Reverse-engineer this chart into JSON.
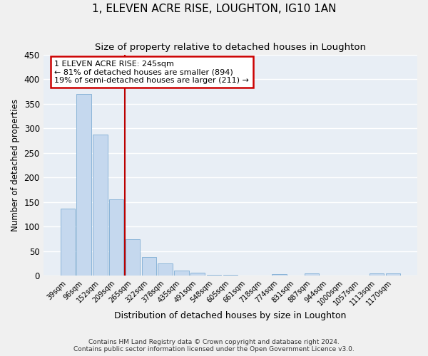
{
  "title": "1, ELEVEN ACRE RISE, LOUGHTON, IG10 1AN",
  "subtitle": "Size of property relative to detached houses in Loughton",
  "xlabel": "Distribution of detached houses by size in Loughton",
  "ylabel": "Number of detached properties",
  "bar_labels": [
    "39sqm",
    "96sqm",
    "152sqm",
    "209sqm",
    "265sqm",
    "322sqm",
    "378sqm",
    "435sqm",
    "491sqm",
    "548sqm",
    "605sqm",
    "661sqm",
    "718sqm",
    "774sqm",
    "831sqm",
    "887sqm",
    "944sqm",
    "1000sqm",
    "1057sqm",
    "1113sqm",
    "1170sqm"
  ],
  "bar_values": [
    137,
    370,
    287,
    155,
    75,
    38,
    25,
    10,
    6,
    2,
    2,
    1,
    0,
    4,
    0,
    5,
    0,
    0,
    0,
    5,
    5
  ],
  "bar_color": "#c5d8ee",
  "bar_edge_color": "#8ab4d8",
  "background_color": "#e8eef5",
  "grid_color": "#ffffff",
  "marker_bin_index": 4,
  "marker_line_color": "#bb0000",
  "annotation_line1": "1 ELEVEN ACRE RISE: 245sqm",
  "annotation_line2": "← 81% of detached houses are smaller (894)",
  "annotation_line3": "19% of semi-detached houses are larger (211) →",
  "annotation_box_color": "#cc0000",
  "ylim": [
    0,
    450
  ],
  "yticks": [
    0,
    50,
    100,
    150,
    200,
    250,
    300,
    350,
    400,
    450
  ],
  "footnote1": "Contains HM Land Registry data © Crown copyright and database right 2024.",
  "footnote2": "Contains public sector information licensed under the Open Government Licence v3.0."
}
